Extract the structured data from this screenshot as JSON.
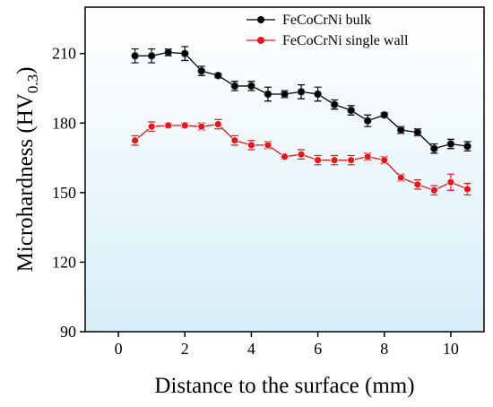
{
  "chart_data": {
    "type": "line",
    "xlabel": "Distance to the surface (mm)",
    "ylabel": {
      "text": "Microhardness (HV",
      "sub": "0.3",
      "end": ")"
    },
    "x": [
      0.5,
      1,
      1.5,
      2,
      2.5,
      3,
      3.5,
      4,
      4.5,
      5,
      5.5,
      6,
      6.5,
      7,
      7.5,
      8,
      8.5,
      9,
      9.5,
      10,
      10.5
    ],
    "series": [
      {
        "name": "FeCoCrNi bulk",
        "color": "#000000",
        "values": [
          209,
          209,
          210.5,
          210,
          202.5,
          200.5,
          196,
          196,
          192.5,
          192.5,
          193.5,
          192.5,
          188,
          185.5,
          181,
          183.5,
          177,
          176,
          169,
          171,
          170
        ],
        "errors": [
          3,
          3,
          1.5,
          3,
          2,
          1,
          2,
          2,
          3,
          1.5,
          3,
          3,
          2,
          2,
          2.5,
          1,
          1.5,
          1.5,
          2,
          2,
          2
        ]
      },
      {
        "name": "FeCoCrNi single wall",
        "color": "#e8161b",
        "values": [
          172.5,
          178.5,
          179,
          179,
          178.5,
          179.5,
          172.5,
          170.5,
          170.5,
          165.5,
          166.5,
          164,
          164,
          164,
          165.5,
          164,
          156.5,
          153.5,
          151,
          154.5,
          151.5
        ],
        "errors": [
          2,
          2,
          1,
          1,
          1.5,
          2,
          2,
          2,
          1.5,
          1,
          2,
          2,
          2,
          2,
          1.5,
          1.5,
          1.5,
          2,
          2,
          3.5,
          2.5
        ]
      }
    ],
    "xlim": [
      -1,
      11
    ],
    "xticks": [
      0,
      2,
      4,
      6,
      8,
      10
    ],
    "ylim": [
      90,
      230
    ],
    "yticks": [
      90,
      120,
      150,
      180,
      210
    ],
    "legend": "upper-center"
  }
}
